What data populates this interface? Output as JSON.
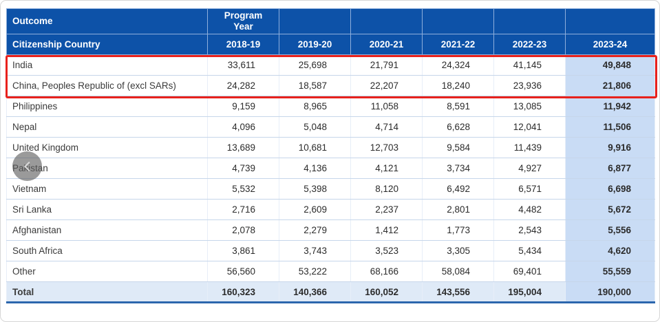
{
  "table": {
    "outcome_label": "Outcome",
    "program_year_label": "Program\nYear",
    "country_header": "Citizenship Country",
    "years": [
      "2018-19",
      "2019-20",
      "2020-21",
      "2021-22",
      "2022-23",
      "2023-24"
    ],
    "rows": [
      {
        "country": "India",
        "values": [
          "33,611",
          "25,698",
          "21,791",
          "24,324",
          "41,145",
          "49,848"
        ]
      },
      {
        "country": "China, Peoples Republic of (excl SARs)",
        "values": [
          "24,282",
          "18,587",
          "22,207",
          "18,240",
          "23,936",
          "21,806"
        ]
      },
      {
        "country": "Philippines",
        "values": [
          "9,159",
          "8,965",
          "11,058",
          "8,591",
          "13,085",
          "11,942"
        ]
      },
      {
        "country": "Nepal",
        "values": [
          "4,096",
          "5,048",
          "4,714",
          "6,628",
          "12,041",
          "11,506"
        ]
      },
      {
        "country": "United Kingdom",
        "values": [
          "13,689",
          "10,681",
          "12,703",
          "9,584",
          "11,439",
          "9,916"
        ]
      },
      {
        "country": "Pakistan",
        "values": [
          "4,739",
          "4,136",
          "4,121",
          "3,734",
          "4,927",
          "6,877"
        ]
      },
      {
        "country": "Vietnam",
        "values": [
          "5,532",
          "5,398",
          "8,120",
          "6,492",
          "6,571",
          "6,698"
        ]
      },
      {
        "country": "Sri Lanka",
        "values": [
          "2,716",
          "2,609",
          "2,237",
          "2,801",
          "4,482",
          "5,672"
        ]
      },
      {
        "country": "Afghanistan",
        "values": [
          "2,078",
          "2,279",
          "1,412",
          "1,773",
          "2,543",
          "5,556"
        ]
      },
      {
        "country": "South Africa",
        "values": [
          "3,861",
          "3,743",
          "3,523",
          "3,305",
          "5,434",
          "4,620"
        ]
      },
      {
        "country": "Other",
        "values": [
          "56,560",
          "53,222",
          "68,166",
          "58,084",
          "69,401",
          "55,559"
        ]
      }
    ],
    "total_row": {
      "country": "Total",
      "values": [
        "160,323",
        "140,366",
        "160,052",
        "143,556",
        "195,004",
        "190,000"
      ]
    }
  },
  "highlight": {
    "highlighted_row_indexes": [
      0,
      1
    ],
    "color": "#e8211c"
  },
  "nav": {
    "back_icon": "chevron-left"
  },
  "colors": {
    "header_bg": "#0d52a8",
    "header_text": "#ffffff",
    "last_column_bg": "#c9dcf5",
    "total_row_bg": "#dfeaf7",
    "bottom_border": "#2b66ad",
    "highlight_red": "#e8211c"
  }
}
